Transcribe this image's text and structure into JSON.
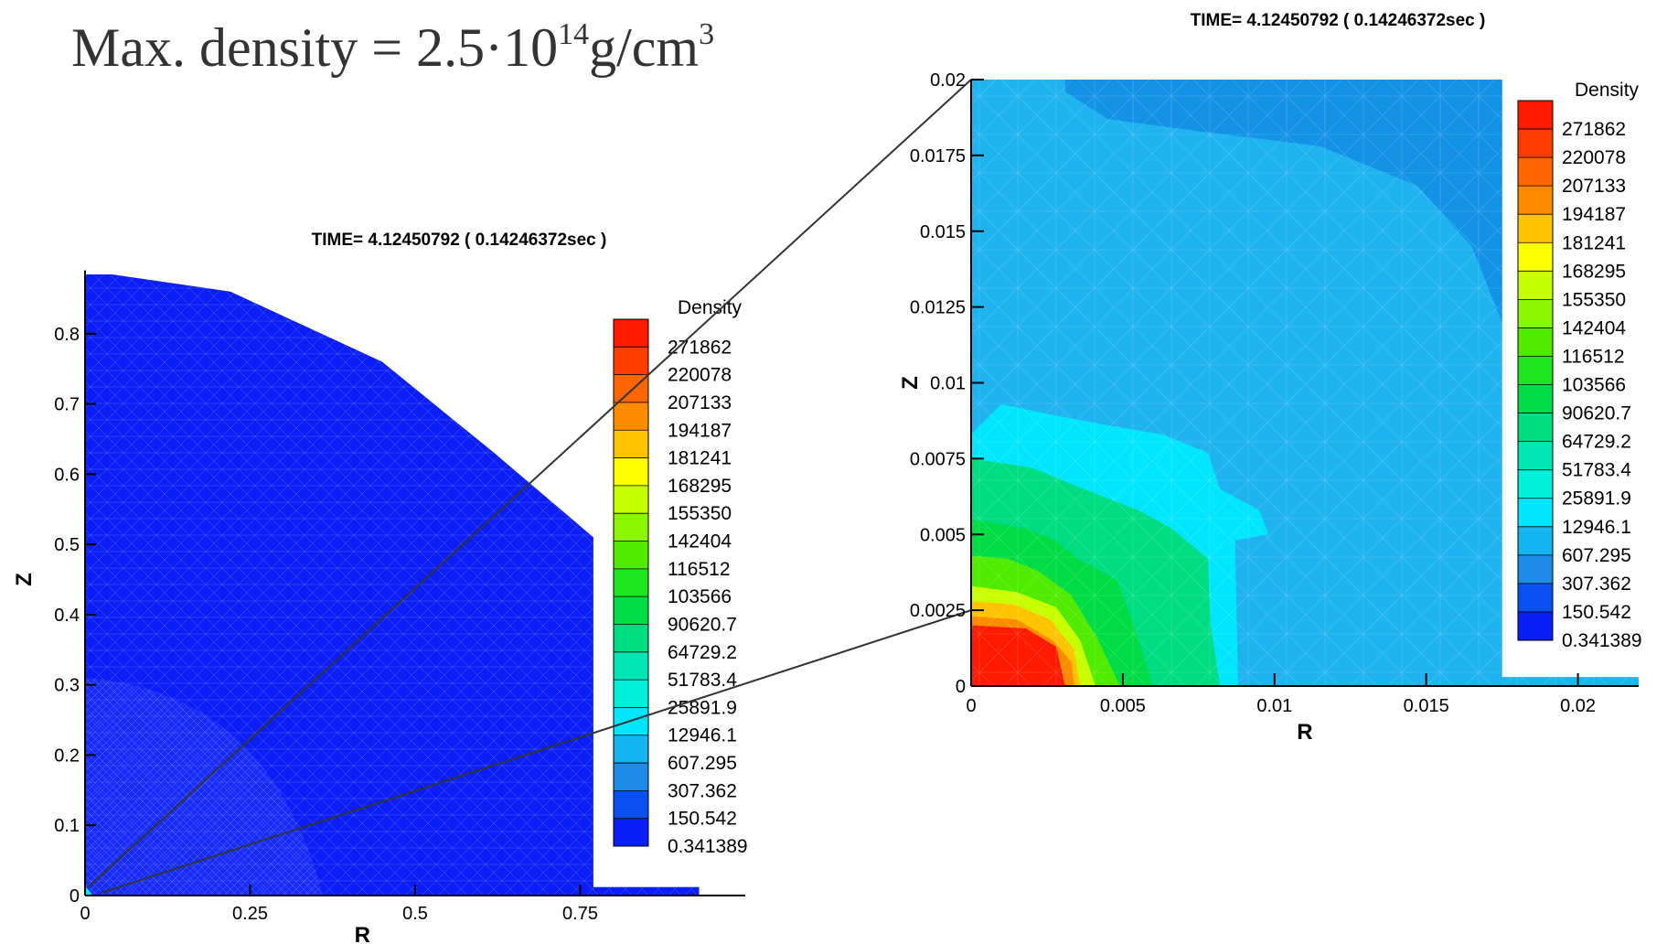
{
  "headline": {
    "prefix": "Max. density = 2.5·10",
    "exp1": "14",
    "unit": "g/cm",
    "exp2": "3"
  },
  "colors": {
    "background_blue": "#0a1ef5",
    "zoom_background": "#1fb3f0",
    "zoom_outer": "#1492e6",
    "mesh": "#9aa8ff"
  },
  "chart_data": [
    {
      "type": "heatmap",
      "title": "TIME=  4.12450792   ( 0.14246372sec )",
      "xlabel": "R",
      "ylabel": "Z",
      "xlim": [
        0,
        0.95
      ],
      "ylim": [
        0,
        0.9
      ],
      "x_ticks": [
        "0",
        "0.25",
        "0.5",
        "0.75"
      ],
      "x_tick_values": [
        0,
        0.25,
        0.5,
        0.75
      ],
      "y_ticks": [
        "0",
        "0.1",
        "0.2",
        "0.3",
        "0.4",
        "0.5",
        "0.6",
        "0.7",
        "0.8"
      ],
      "y_tick_values": [
        0,
        0.1,
        0.2,
        0.3,
        0.4,
        0.5,
        0.6,
        0.7,
        0.8
      ],
      "domain_outline": [
        [
          0,
          0.89
        ],
        [
          0.22,
          0.86
        ],
        [
          0.45,
          0.76
        ],
        [
          0.62,
          0.63
        ],
        [
          0.77,
          0.51
        ],
        [
          0.77,
          0.012
        ],
        [
          0.93,
          0.012
        ],
        [
          0.93,
          0
        ],
        [
          0,
          0
        ]
      ],
      "legend": {
        "title": "Density",
        "levels": [
          "271862",
          "220078",
          "207133",
          "194187",
          "181241",
          "168295",
          "155350",
          "142404",
          "116512",
          "103566",
          "90620.7",
          "64729.2",
          "51783.4",
          "25891.9",
          "12946.1",
          "607.295",
          "307.362",
          "150.542",
          "0.341389"
        ],
        "colors": [
          "#ff1a00",
          "#ff3d00",
          "#ff6600",
          "#ff8c00",
          "#ffc400",
          "#ffff00",
          "#c8ff00",
          "#8cf500",
          "#50eb00",
          "#1ee61e",
          "#00dc46",
          "#00dc82",
          "#00e6b4",
          "#00f0dc",
          "#00e6ff",
          "#14b4f0",
          "#1e8ce6",
          "#0a50f0",
          "#0a1ef5"
        ]
      }
    },
    {
      "type": "heatmap",
      "title": "TIME=  4.12450792   ( 0.14246372sec )",
      "xlabel": "R",
      "ylabel": "Z",
      "xlim": [
        0,
        0.022
      ],
      "ylim": [
        0,
        0.02
      ],
      "x_ticks": [
        "0",
        "0.005",
        "0.01",
        "0.015",
        "0.02"
      ],
      "x_tick_values": [
        0,
        0.005,
        0.01,
        0.015,
        0.02
      ],
      "y_ticks": [
        "0",
        "0.0025",
        "0.005",
        "0.0075",
        "0.01",
        "0.0125",
        "0.015",
        "0.0175",
        "0.02"
      ],
      "y_tick_values": [
        0,
        0.0025,
        0.005,
        0.0075,
        0.01,
        0.0125,
        0.015,
        0.0175,
        0.02
      ],
      "regions": [
        {
          "level": "307.362",
          "color": "#1492e6",
          "points": [
            [
              0.0031,
              0.02
            ],
            [
              0.0175,
              0.02
            ],
            [
              0.0175,
              0.012
            ],
            [
              0.0165,
              0.0145
            ],
            [
              0.0147,
              0.0165
            ],
            [
              0.0115,
              0.0178
            ],
            [
              0.0075,
              0.0183
            ],
            [
              0.0045,
              0.0187
            ],
            [
              0.0031,
              0.0196
            ]
          ]
        },
        {
          "level": "12946.1",
          "color": "#00e6ff",
          "points": [
            [
              0,
              0.0083
            ],
            [
              0.001,
              0.0093
            ],
            [
              0.0024,
              0.009
            ],
            [
              0.0045,
              0.0086
            ],
            [
              0.0063,
              0.0083
            ],
            [
              0.0078,
              0.0077
            ],
            [
              0.0082,
              0.0065
            ],
            [
              0.0095,
              0.0058
            ],
            [
              0.0098,
              0.005
            ],
            [
              0.0087,
              0.0048
            ],
            [
              0.0088,
              0
            ],
            [
              0,
              0
            ]
          ]
        },
        {
          "level": "51783.4",
          "color": "#00dc82",
          "points": [
            [
              0,
              0.0075
            ],
            [
              0.002,
              0.0072
            ],
            [
              0.0037,
              0.0065
            ],
            [
              0.0055,
              0.0058
            ],
            [
              0.0066,
              0.0052
            ],
            [
              0.0078,
              0.0042
            ],
            [
              0.0079,
              0.002
            ],
            [
              0.0082,
              0
            ],
            [
              0,
              0
            ]
          ]
        },
        {
          "level": "90620.7",
          "color": "#00dc46",
          "points": [
            [
              0,
              0.0055
            ],
            [
              0.0018,
              0.0052
            ],
            [
              0.0028,
              0.0048
            ],
            [
              0.0035,
              0.0042
            ],
            [
              0.0048,
              0.0035
            ],
            [
              0.0053,
              0.0022
            ],
            [
              0.006,
              0
            ],
            [
              0,
              0
            ]
          ]
        },
        {
          "level": "116512",
          "color": "#50eb00",
          "points": [
            [
              0,
              0.0043
            ],
            [
              0.0012,
              0.0042
            ],
            [
              0.0022,
              0.0038
            ],
            [
              0.0033,
              0.003
            ],
            [
              0.0042,
              0.0015
            ],
            [
              0.0049,
              0
            ],
            [
              0,
              0
            ]
          ]
        },
        {
          "level": "155350",
          "color": "#c8ff00",
          "points": [
            [
              0,
              0.0033
            ],
            [
              0.0015,
              0.0031
            ],
            [
              0.0028,
              0.0026
            ],
            [
              0.0036,
              0.0015
            ],
            [
              0.0041,
              0
            ],
            [
              0,
              0
            ]
          ]
        },
        {
          "level": "181241",
          "color": "#ffc400",
          "points": [
            [
              0,
              0.0028
            ],
            [
              0.0014,
              0.0027
            ],
            [
              0.0026,
              0.0022
            ],
            [
              0.0034,
              0.0012
            ],
            [
              0.0036,
              0
            ],
            [
              0,
              0
            ]
          ]
        },
        {
          "level": "194187",
          "color": "#ff8c00",
          "points": [
            [
              0,
              0.0023
            ],
            [
              0.0015,
              0.0022
            ],
            [
              0.0027,
              0.0015
            ],
            [
              0.0033,
              0.0008
            ],
            [
              0.0034,
              0
            ],
            [
              0,
              0
            ]
          ]
        },
        {
          "level": "271862",
          "color": "#ff1a00",
          "points": [
            [
              0,
              0.002
            ],
            [
              0.0018,
              0.0019
            ],
            [
              0.0028,
              0.0013
            ],
            [
              0.0031,
              0
            ],
            [
              0,
              0
            ]
          ]
        }
      ],
      "domain_outline": [
        [
          0,
          0.02
        ],
        [
          0.0175,
          0.02
        ],
        [
          0.0175,
          0.0003
        ],
        [
          0.022,
          0.0003
        ],
        [
          0.022,
          0
        ],
        [
          0,
          0
        ]
      ],
      "legend": {
        "title": "Density",
        "levels": [
          "271862",
          "220078",
          "207133",
          "194187",
          "181241",
          "168295",
          "155350",
          "142404",
          "116512",
          "103566",
          "90620.7",
          "64729.2",
          "51783.4",
          "25891.9",
          "12946.1",
          "607.295",
          "307.362",
          "150.542",
          "0.341389"
        ],
        "colors": [
          "#ff1a00",
          "#ff3d00",
          "#ff6600",
          "#ff8c00",
          "#ffc400",
          "#ffff00",
          "#c8ff00",
          "#8cf500",
          "#50eb00",
          "#1ee61e",
          "#00dc46",
          "#00dc82",
          "#00e6b4",
          "#00f0dc",
          "#00e6ff",
          "#14b4f0",
          "#1e8ce6",
          "#0a50f0",
          "#0a1ef5"
        ]
      }
    }
  ]
}
